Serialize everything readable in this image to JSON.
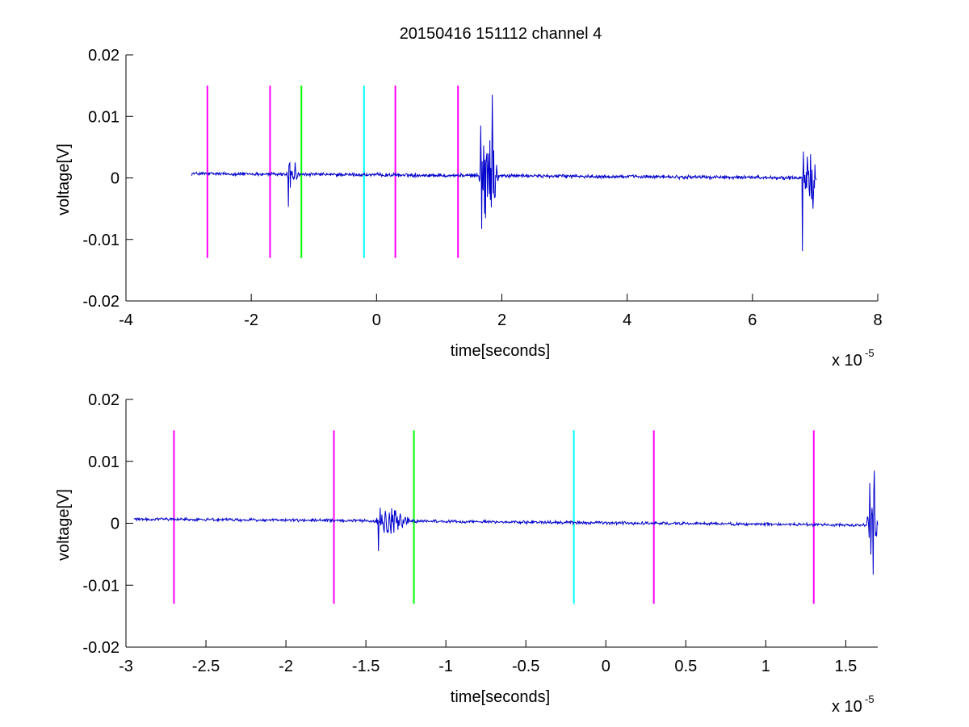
{
  "figure": {
    "title": "20150416 151112 channel 4"
  },
  "chart_data": [
    {
      "type": "line",
      "title": "20150416 151112 channel 4",
      "xlabel": "time[seconds]",
      "ylabel": "voltage[V]",
      "x_exponent_label": "x 10",
      "x_exponent": "-5",
      "xlim": [
        -4e-05,
        8e-05
      ],
      "ylim": [
        -0.02,
        0.02
      ],
      "x_ticks": [
        -4e-05,
        -2e-05,
        0,
        2e-05,
        4e-05,
        6e-05,
        8e-05
      ],
      "x_tick_labels": [
        "-4",
        "-2",
        "0",
        "2",
        "4",
        "6",
        "8"
      ],
      "y_ticks": [
        -0.02,
        -0.01,
        0,
        0.01,
        0.02
      ],
      "y_tick_labels": [
        "-0.02",
        "-0.01",
        "0",
        "0.01",
        "0.02"
      ],
      "grid": false,
      "markers": [
        {
          "x": -2.7e-05,
          "y0": -0.013,
          "y1": 0.015,
          "color": "#ff00ff"
        },
        {
          "x": -1.7e-05,
          "y0": -0.013,
          "y1": 0.015,
          "color": "#ff00ff"
        },
        {
          "x": -1.2e-05,
          "y0": -0.013,
          "y1": 0.015,
          "color": "#00ff00"
        },
        {
          "x": -2e-06,
          "y0": -0.013,
          "y1": 0.015,
          "color": "#00ffff"
        },
        {
          "x": 3e-06,
          "y0": -0.013,
          "y1": 0.015,
          "color": "#ff00ff"
        },
        {
          "x": 1.3e-05,
          "y0": -0.013,
          "y1": 0.015,
          "color": "#ff00ff"
        }
      ],
      "series": [
        {
          "color": "#0000cc",
          "x_range": [
            -2.95e-05,
            7.02e-05
          ],
          "baseline_start": 0.0007,
          "baseline_end": 0,
          "noise": 0.00035,
          "bursts": [
            {
              "x0": -1.45e-05,
              "x1": -1.25e-05,
              "amp": 0.0025
            },
            {
              "x0": 1.62e-05,
              "x1": 1.95e-05,
              "amp": 0.008
            },
            {
              "x0": 6.8e-05,
              "x1": 7.02e-05,
              "amp": 0.0045
            }
          ],
          "spikes": [
            {
              "x": -1.41e-05,
              "y": -0.0047
            },
            {
              "x": -1.39e-05,
              "y": 0.0023
            },
            {
              "x": 1.66e-05,
              "y": 0.0085
            },
            {
              "x": 1.68e-05,
              "y": -0.0083
            },
            {
              "x": 1.85e-05,
              "y": 0.0135
            },
            {
              "x": 1.86e-05,
              "y": -0.0025
            },
            {
              "x": 6.8e-05,
              "y": -0.0119
            },
            {
              "x": 6.81e-05,
              "y": 0.0043
            },
            {
              "x": 6.97e-05,
              "y": -0.005
            },
            {
              "x": 7e-05,
              "y": 0.0022
            }
          ]
        }
      ]
    },
    {
      "type": "line",
      "title": "",
      "xlabel": "time[seconds]",
      "ylabel": "voltage[V]",
      "x_exponent_label": "x 10",
      "x_exponent": "-5",
      "xlim": [
        -3e-05,
        1.7e-05
      ],
      "ylim": [
        -0.02,
        0.02
      ],
      "x_ticks": [
        -3e-05,
        -2.5e-05,
        -2e-05,
        -1.5e-05,
        -1e-05,
        -5e-06,
        0,
        5e-06,
        1e-05,
        1.5e-05
      ],
      "x_tick_labels": [
        "-3",
        "-2.5",
        "-2",
        "-1.5",
        "-1",
        "-0.5",
        "0",
        "0.5",
        "1",
        "1.5"
      ],
      "y_ticks": [
        -0.02,
        -0.01,
        0,
        0.01,
        0.02
      ],
      "y_tick_labels": [
        "-0.02",
        "-0.01",
        "0",
        "0.01",
        "0.02"
      ],
      "grid": false,
      "markers": [
        {
          "x": -2.7e-05,
          "y0": -0.013,
          "y1": 0.015,
          "color": "#ff00ff"
        },
        {
          "x": -1.7e-05,
          "y0": -0.013,
          "y1": 0.015,
          "color": "#ff00ff"
        },
        {
          "x": -1.2e-05,
          "y0": -0.013,
          "y1": 0.015,
          "color": "#00ff00"
        },
        {
          "x": -2e-06,
          "y0": -0.013,
          "y1": 0.015,
          "color": "#00ffff"
        },
        {
          "x": 3e-06,
          "y0": -0.013,
          "y1": 0.015,
          "color": "#ff00ff"
        },
        {
          "x": 1.3e-05,
          "y0": -0.013,
          "y1": 0.015,
          "color": "#ff00ff"
        }
      ],
      "series": [
        {
          "color": "#0000cc",
          "x_range": [
            -2.95e-05,
            1.7e-05
          ],
          "baseline_start": 0.0007,
          "baseline_end": -0.0003,
          "noise": 0.0003,
          "bursts": [
            {
              "x0": -1.45e-05,
              "x1": -1.22e-05,
              "amp": 0.0022
            },
            {
              "x0": 1.63e-05,
              "x1": 1.7e-05,
              "amp": 0.006
            }
          ],
          "spikes": [
            {
              "x": -1.42e-05,
              "y": -0.0045
            },
            {
              "x": -1.41e-05,
              "y": 0.0025
            },
            {
              "x": 1.65e-05,
              "y": 0.0065
            },
            {
              "x": 1.67e-05,
              "y": -0.0083
            },
            {
              "x": 1.68e-05,
              "y": 0.0085
            }
          ]
        }
      ]
    }
  ]
}
